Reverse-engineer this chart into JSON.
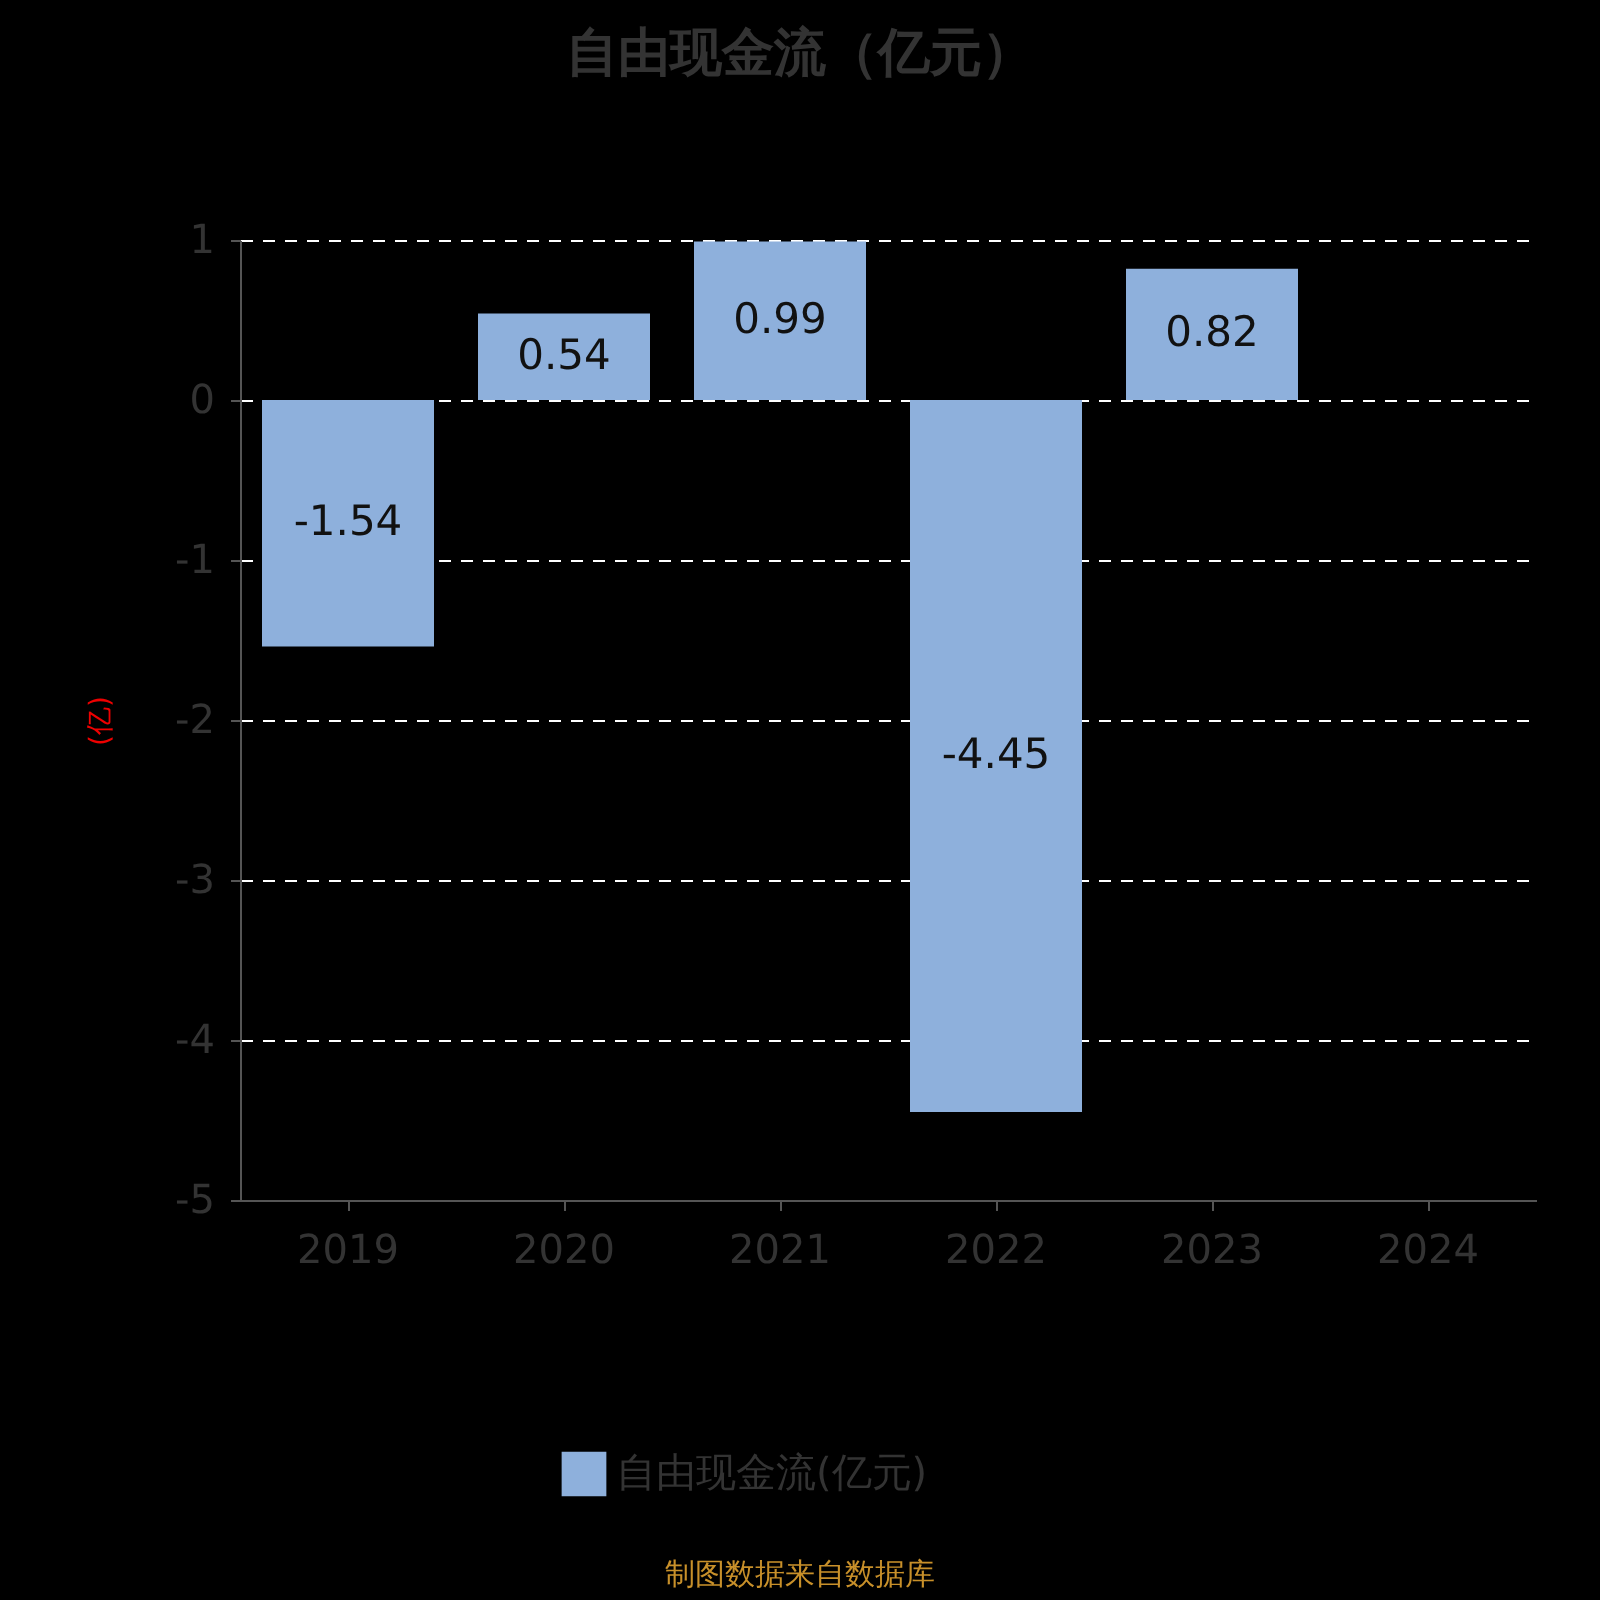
{
  "chart_data": {
    "type": "bar",
    "title": "自由现金流（亿元）",
    "ylabel": "(亿)",
    "categories": [
      "2019",
      "2020",
      "2021",
      "2022",
      "2023",
      "2024"
    ],
    "series": [
      {
        "name": "自由现金流(亿元)",
        "color": "#8eb0dc",
        "values": [
          -1.54,
          0.54,
          0.99,
          -4.45,
          0.82,
          null
        ]
      }
    ],
    "ylim": [
      -5,
      1
    ],
    "yticks": [
      -5,
      -4,
      -3,
      -2,
      -1,
      0,
      1
    ],
    "grid": "y",
    "legend": "bottom",
    "data_labels": true,
    "annotations": [
      "制图数据来自数据库"
    ]
  }
}
